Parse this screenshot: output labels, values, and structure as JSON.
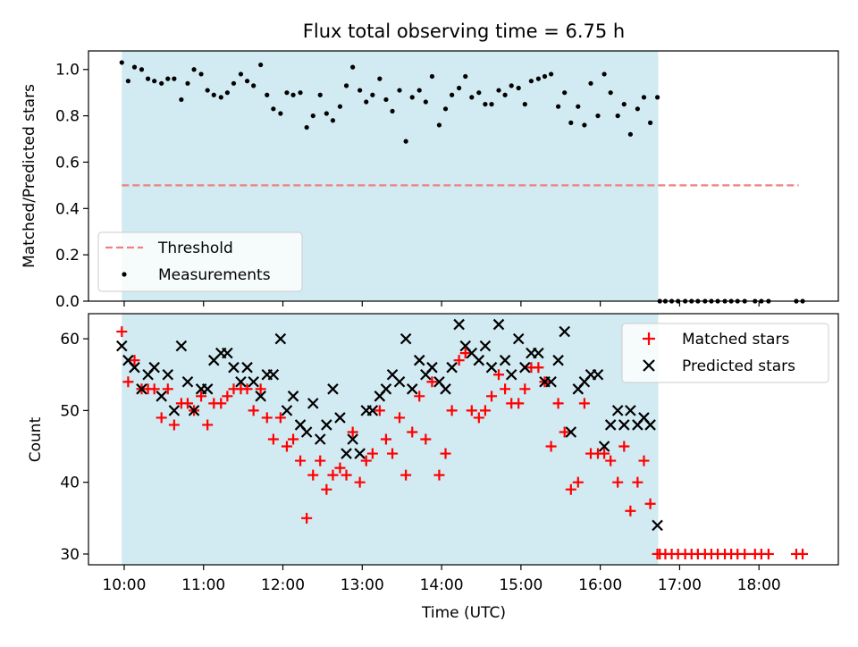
{
  "chart_data": {
    "title": "Flux total observing time = 6.75 h",
    "xlabel": "Time (UTC)",
    "x_units": "hours (UTC)",
    "xlim": [
      9.55,
      19.0
    ],
    "xticks": [
      {
        "value": 10,
        "label": "10:00"
      },
      {
        "value": 11,
        "label": "11:00"
      },
      {
        "value": 12,
        "label": "12:00"
      },
      {
        "value": 13,
        "label": "13:00"
      },
      {
        "value": 14,
        "label": "14:00"
      },
      {
        "value": 15,
        "label": "15:00"
      },
      {
        "value": 16,
        "label": "16:00"
      },
      {
        "value": 17,
        "label": "17:00"
      },
      {
        "value": 18,
        "label": "18:00"
      }
    ],
    "observing_window": {
      "start": 9.97,
      "end": 16.73,
      "color": "#add8e6"
    },
    "panels": [
      {
        "type": "scatter",
        "ylabel": "Matched/Predicted stars",
        "ylim": [
          0,
          1.08
        ],
        "yticks": [
          {
            "value": 0.0,
            "label": "0.0"
          },
          {
            "value": 0.2,
            "label": "0.2"
          },
          {
            "value": 0.4,
            "label": "0.4"
          },
          {
            "value": 0.6,
            "label": "0.6"
          },
          {
            "value": 0.8,
            "label": "0.8"
          },
          {
            "value": 1.0,
            "label": "1.0"
          }
        ],
        "threshold": {
          "name": "Threshold",
          "value": 0.5,
          "x_start": 9.97,
          "x_end": 18.5,
          "color": "#f08080"
        },
        "legend_position": "lower-left",
        "series": [
          {
            "name": "Measurements",
            "marker": "dot",
            "color": "#000000",
            "x": [
              9.97,
              10.05,
              10.13,
              10.22,
              10.3,
              10.38,
              10.47,
              10.55,
              10.63,
              10.72,
              10.8,
              10.88,
              10.97,
              11.05,
              11.13,
              11.22,
              11.3,
              11.38,
              11.47,
              11.55,
              11.63,
              11.72,
              11.8,
              11.88,
              11.97,
              12.05,
              12.13,
              12.22,
              12.3,
              12.38,
              12.47,
              12.55,
              12.63,
              12.72,
              12.8,
              12.88,
              12.97,
              13.05,
              13.13,
              13.22,
              13.3,
              13.38,
              13.47,
              13.55,
              13.63,
              13.72,
              13.8,
              13.88,
              13.97,
              14.05,
              14.13,
              14.22,
              14.3,
              14.38,
              14.47,
              14.55,
              14.63,
              14.72,
              14.8,
              14.88,
              14.97,
              15.05,
              15.13,
              15.22,
              15.3,
              15.38,
              15.47,
              15.55,
              15.63,
              15.72,
              15.8,
              15.88,
              15.97,
              16.05,
              16.13,
              16.22,
              16.3,
              16.38,
              16.47,
              16.55,
              16.63,
              16.72,
              16.75,
              16.82,
              16.9,
              16.98,
              17.07,
              17.15,
              17.23,
              17.32,
              17.4,
              17.48,
              17.57,
              17.65,
              17.73,
              17.82,
              17.95,
              18.03,
              18.12,
              18.47,
              18.55
            ],
            "y": [
              1.03,
              0.95,
              1.01,
              1.0,
              0.96,
              0.95,
              0.94,
              0.96,
              0.96,
              0.87,
              0.94,
              1.0,
              0.98,
              0.91,
              0.89,
              0.88,
              0.9,
              0.94,
              0.98,
              0.95,
              0.93,
              1.02,
              0.89,
              0.83,
              0.81,
              0.9,
              0.89,
              0.9,
              0.75,
              0.8,
              0.89,
              0.81,
              0.78,
              0.84,
              0.93,
              1.01,
              0.91,
              0.86,
              0.89,
              0.96,
              0.87,
              0.82,
              0.91,
              0.69,
              0.88,
              0.91,
              0.86,
              0.97,
              0.76,
              0.83,
              0.89,
              0.92,
              0.97,
              0.88,
              0.9,
              0.85,
              0.85,
              0.91,
              0.89,
              0.93,
              0.92,
              0.85,
              0.95,
              0.96,
              0.97,
              0.98,
              0.84,
              0.9,
              0.77,
              0.84,
              0.76,
              0.94,
              0.8,
              0.98,
              0.9,
              0.8,
              0.85,
              0.72,
              0.83,
              0.88,
              0.77,
              0.88,
              0.0,
              0.0,
              0.0,
              0.0,
              0.0,
              0.0,
              0.0,
              0.0,
              0.0,
              0.0,
              0.0,
              0.0,
              0.0,
              0.0,
              0.0,
              0.0,
              0.0,
              0.0,
              0.0
            ]
          }
        ]
      },
      {
        "type": "scatter",
        "ylabel": "Count",
        "ylim": [
          28.5,
          63.5
        ],
        "yticks": [
          {
            "value": 30,
            "label": "30"
          },
          {
            "value": 40,
            "label": "40"
          },
          {
            "value": 50,
            "label": "50"
          },
          {
            "value": 60,
            "label": "60"
          }
        ],
        "legend_position": "upper-right",
        "series": [
          {
            "name": "Matched stars",
            "marker": "plus",
            "color": "#ff0000",
            "x": [
              9.97,
              10.05,
              10.13,
              10.22,
              10.3,
              10.38,
              10.47,
              10.55,
              10.63,
              10.72,
              10.8,
              10.88,
              10.97,
              11.05,
              11.13,
              11.22,
              11.3,
              11.38,
              11.47,
              11.55,
              11.63,
              11.72,
              11.8,
              11.88,
              11.97,
              12.05,
              12.13,
              12.22,
              12.3,
              12.38,
              12.47,
              12.55,
              12.63,
              12.72,
              12.8,
              12.88,
              12.97,
              13.05,
              13.13,
              13.22,
              13.3,
              13.38,
              13.47,
              13.55,
              13.63,
              13.72,
              13.8,
              13.88,
              13.97,
              14.05,
              14.13,
              14.22,
              14.3,
              14.38,
              14.47,
              14.55,
              14.63,
              14.72,
              14.8,
              14.88,
              14.97,
              15.05,
              15.13,
              15.22,
              15.3,
              15.38,
              15.47,
              15.55,
              15.63,
              15.72,
              15.8,
              15.88,
              15.97,
              16.05,
              16.13,
              16.22,
              16.3,
              16.38,
              16.47,
              16.55,
              16.63,
              16.72,
              16.75,
              16.82,
              16.9,
              16.98,
              17.07,
              17.15,
              17.23,
              17.32,
              17.4,
              17.48,
              17.57,
              17.65,
              17.73,
              17.82,
              17.95,
              18.03,
              18.12,
              18.47,
              18.55
            ],
            "y": [
              61,
              54,
              57,
              53,
              53,
              53,
              49,
              53,
              48,
              51,
              51,
              50,
              52,
              48,
              51,
              51,
              52,
              53,
              53,
              53,
              50,
              53,
              49,
              46,
              49,
              45,
              46,
              43,
              35,
              41,
              43,
              39,
              41,
              42,
              41,
              47,
              40,
              43,
              44,
              50,
              46,
              44,
              49,
              41,
              47,
              52,
              46,
              54,
              41,
              44,
              50,
              57,
              58,
              50,
              49,
              50,
              52,
              55,
              53,
              51,
              51,
              53,
              56,
              56,
              54,
              45,
              51,
              47,
              39,
              40,
              51,
              44,
              44,
              44,
              43,
              40,
              45,
              36,
              40,
              43,
              37,
              30,
              30,
              30,
              30,
              30,
              30,
              30,
              30,
              30,
              30,
              30,
              30,
              30,
              30,
              30,
              30,
              30,
              30,
              30,
              30
            ]
          },
          {
            "name": "Predicted stars",
            "marker": "x",
            "color": "#000000",
            "x": [
              9.97,
              10.05,
              10.13,
              10.22,
              10.3,
              10.38,
              10.47,
              10.55,
              10.63,
              10.72,
              10.8,
              10.88,
              10.97,
              11.05,
              11.13,
              11.22,
              11.3,
              11.38,
              11.47,
              11.55,
              11.63,
              11.72,
              11.8,
              11.88,
              11.97,
              12.05,
              12.13,
              12.22,
              12.3,
              12.38,
              12.47,
              12.55,
              12.63,
              12.72,
              12.8,
              12.88,
              12.97,
              13.05,
              13.13,
              13.22,
              13.3,
              13.38,
              13.47,
              13.55,
              13.63,
              13.72,
              13.8,
              13.88,
              13.97,
              14.05,
              14.13,
              14.22,
              14.3,
              14.38,
              14.47,
              14.55,
              14.63,
              14.72,
              14.8,
              14.88,
              14.97,
              15.05,
              15.13,
              15.22,
              15.3,
              15.38,
              15.47,
              15.55,
              15.63,
              15.72,
              15.8,
              15.88,
              15.97,
              16.05,
              16.13,
              16.22,
              16.3,
              16.38,
              16.47,
              16.55,
              16.63,
              16.72
            ],
            "y": [
              59,
              57,
              56,
              53,
              55,
              56,
              52,
              55,
              50,
              59,
              54,
              50,
              53,
              53,
              57,
              58,
              58,
              56,
              54,
              56,
              54,
              52,
              55,
              55,
              60,
              50,
              52,
              48,
              47,
              51,
              46,
              48,
              53,
              49,
              44,
              46,
              44,
              50,
              50,
              52,
              53,
              55,
              54,
              60,
              53,
              57,
              55,
              56,
              54,
              53,
              56,
              62,
              59,
              58,
              57,
              59,
              56,
              62,
              57,
              55,
              60,
              56,
              58,
              58,
              54,
              54,
              57,
              61,
              47,
              53,
              54,
              55,
              55,
              45,
              48,
              50,
              48,
              50,
              48,
              49,
              48,
              34
            ]
          }
        ]
      }
    ]
  }
}
